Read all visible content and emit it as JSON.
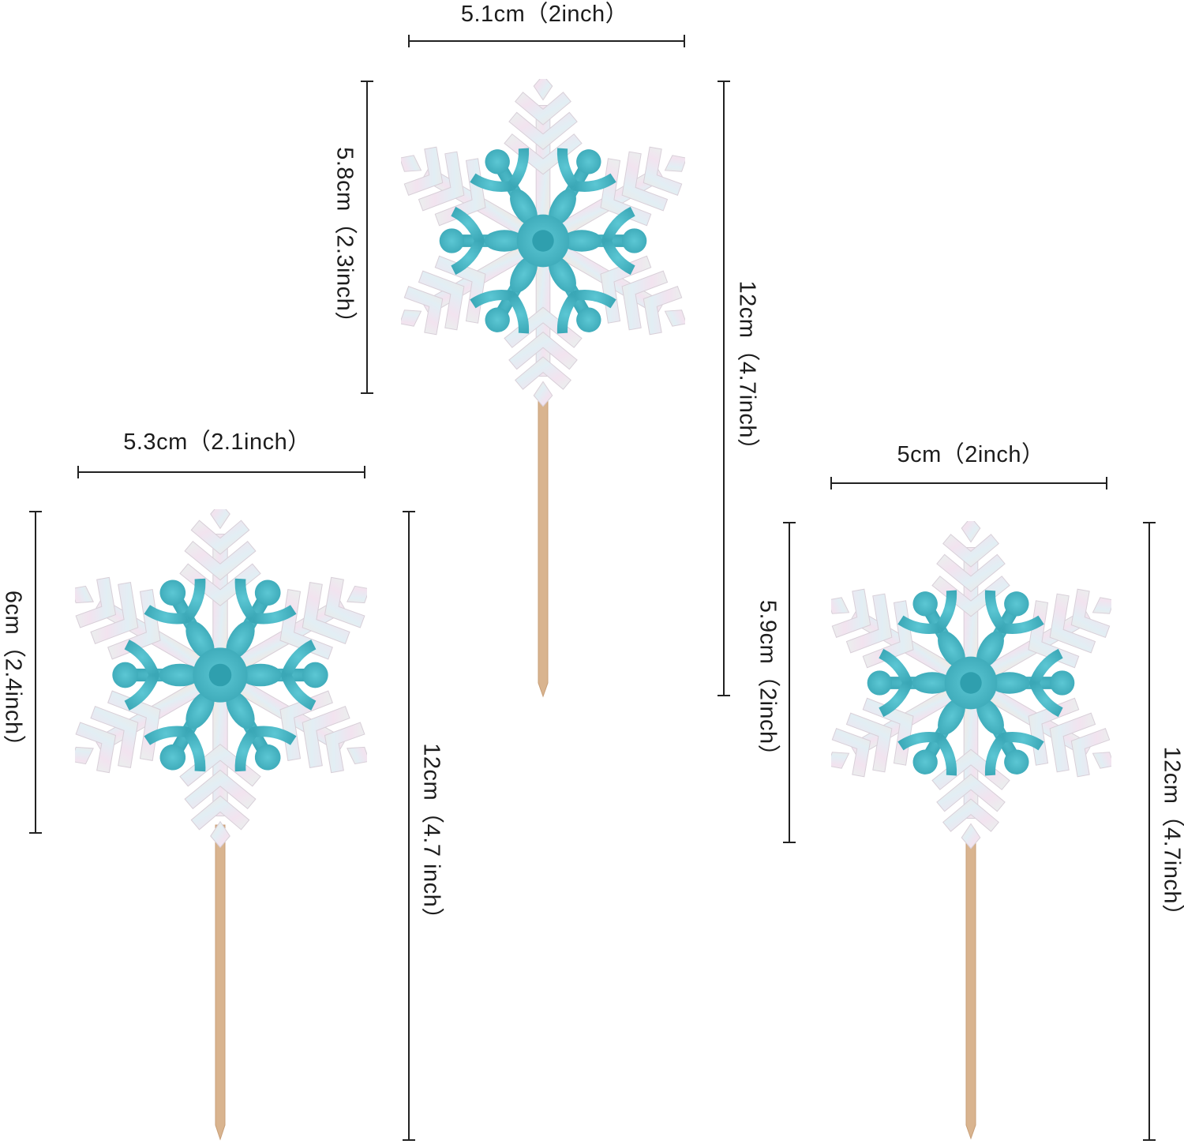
{
  "measurements": {
    "top_width": "5.1cm（2inch）",
    "top_head_height": "5.8cm（2.3inch）",
    "top_total_height": "12cm（4.7inch）",
    "left_width": "5.3cm（2.1inch）",
    "left_head_height": "6cm（2.4inch）",
    "left_total_height": "12cm（4.7 inch）",
    "right_width": "5cm（2inch）",
    "right_head_height": "5.9cm（2inch）",
    "right_total_height": "12cm（4.7inch）"
  },
  "colors": {
    "glitter": "#49b8c6",
    "glitter_dark": "#2f9fae",
    "iridescent_a": "#f0e6ee",
    "iridescent_b": "#e4f2ee",
    "stick": "#d9b48f",
    "dimension_line": "#222222"
  },
  "toppers": [
    {
      "name": "snowflake-topper-top",
      "icon": "snowflake-icon"
    },
    {
      "name": "snowflake-topper-left",
      "icon": "snowflake-icon"
    },
    {
      "name": "snowflake-topper-right",
      "icon": "snowflake-icon"
    }
  ]
}
